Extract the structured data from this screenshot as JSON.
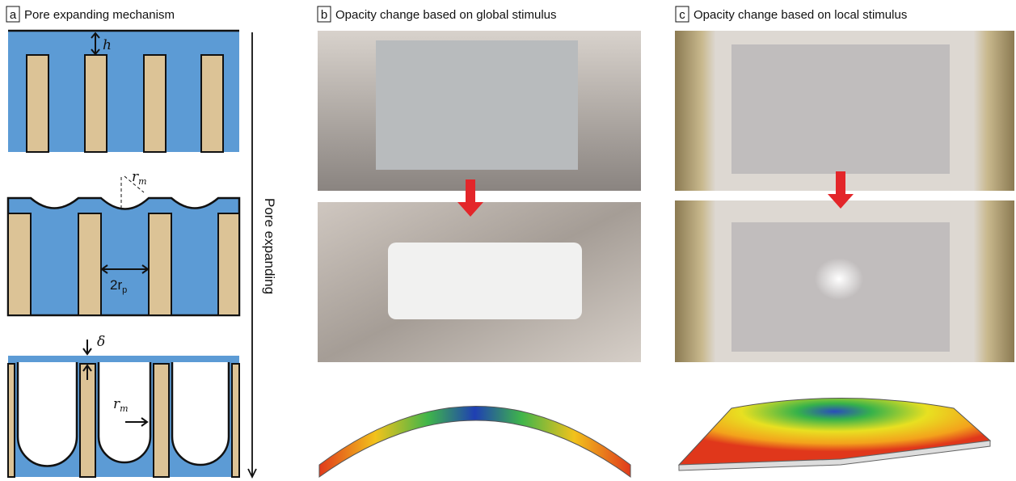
{
  "panels": [
    {
      "label": "a",
      "title": "Pore expanding mechanism",
      "annotations": {
        "h": "h",
        "r_m_top": {
          "base": "r",
          "sub": "m"
        },
        "two_r_p": {
          "base": "2r",
          "sub": "p"
        },
        "delta": "δ",
        "r_m_bottom": {
          "base": "r",
          "sub": "m"
        },
        "arrow": "Pore expanding"
      }
    },
    {
      "label": "b",
      "title": "Opacity change based on global stimulus"
    },
    {
      "label": "c",
      "title": "Opacity change based on local stimulus"
    }
  ]
}
